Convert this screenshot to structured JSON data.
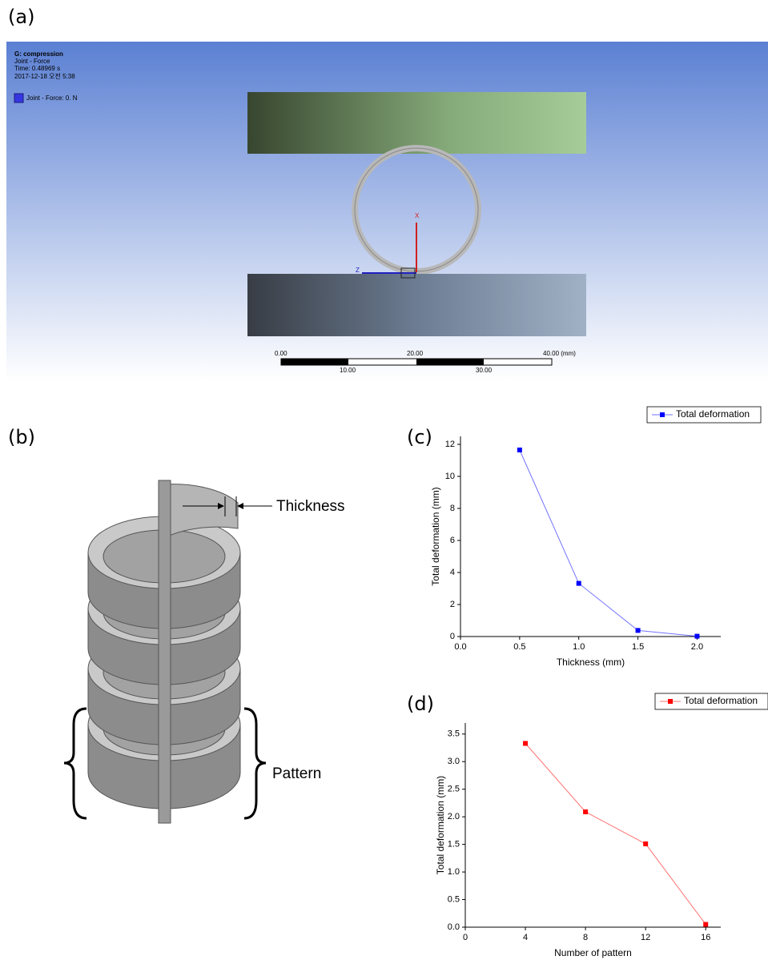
{
  "panels": {
    "a": {
      "label": "(a)",
      "info": [
        "G: compression",
        "Joint - Force",
        "Time: 0.48969 s",
        "2017-12-18 오전 5:38"
      ],
      "legend": "Joint - Force: 0. N",
      "axes": [
        "X",
        "Z"
      ],
      "scale": [
        "0.00",
        "20.00",
        "40.00 (mm)",
        "10.00",
        "30.00"
      ]
    },
    "b": {
      "label": "(b)",
      "thickness": "Thickness",
      "pattern": "Pattern"
    }
  },
  "chart_data": [
    {
      "type": "line",
      "label": "(c)",
      "x_label": "Thickness (mm)",
      "y_label": "Total deformation (mm)",
      "x": [
        0.5,
        1.0,
        1.5,
        2.0
      ],
      "series": [
        {
          "name": "Total deformation",
          "color": "#0000ff",
          "values": [
            11.65,
            3.32,
            0.38,
            0.02
          ]
        }
      ],
      "xlim": [
        0,
        2.2
      ],
      "xticks": [
        {
          "value": 0,
          "label": "0.0"
        },
        0.5,
        {
          "value": 1,
          "label": "1.0"
        },
        1.5,
        {
          "value": 2,
          "label": "2.0"
        }
      ],
      "ylim": [
        0,
        12.5
      ],
      "yticks": [
        0,
        2,
        4,
        6,
        8,
        10,
        12
      ]
    },
    {
      "type": "line",
      "label": "(d)",
      "x_label": "Number of pattern",
      "y_label": "Total deformation (mm)",
      "x": [
        4,
        8,
        12,
        16
      ],
      "series": [
        {
          "name": "Total deformation",
          "color": "#ff0000",
          "values": [
            3.33,
            2.09,
            1.51,
            0.05
          ]
        }
      ],
      "xlim": [
        0,
        17
      ],
      "xticks": [
        0,
        4,
        8,
        12,
        16
      ],
      "ylim": [
        0,
        3.7
      ],
      "yticks": [
        {
          "value": 0,
          "label": "0.0"
        },
        0.5,
        {
          "value": 1,
          "label": "1.0"
        },
        1.5,
        {
          "value": 2,
          "label": "2.0"
        },
        2.5,
        {
          "value": 3,
          "label": "3.0"
        },
        3.5
      ]
    }
  ]
}
